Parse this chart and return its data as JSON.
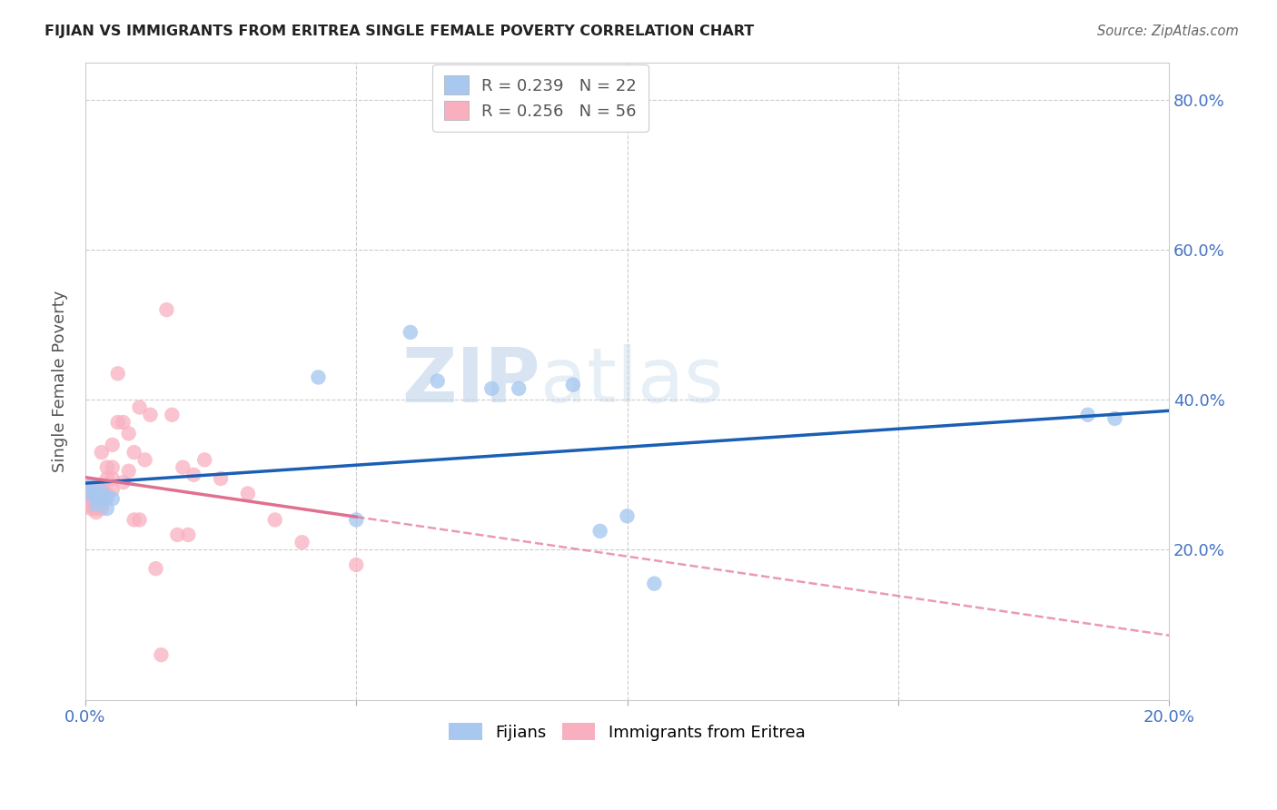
{
  "title": "FIJIAN VS IMMIGRANTS FROM ERITREA SINGLE FEMALE POVERTY CORRELATION CHART",
  "source": "Source: ZipAtlas.com",
  "ylabel": "Single Female Poverty",
  "xlim": [
    0.0,
    0.2
  ],
  "ylim": [
    0.0,
    0.85
  ],
  "watermark": "ZIPatlas",
  "fijian_color": "#a8c8f0",
  "eritrea_color": "#f8b0c0",
  "fijian_line_color": "#1a5fb4",
  "eritrea_line_color": "#e07090",
  "fijian_R": 0.239,
  "fijian_N": 22,
  "eritrea_R": 0.256,
  "eritrea_N": 56,
  "fijians_x": [
    0.001,
    0.001,
    0.002,
    0.002,
    0.002,
    0.003,
    0.003,
    0.004,
    0.004,
    0.005,
    0.043,
    0.05,
    0.06,
    0.065,
    0.075,
    0.08,
    0.09,
    0.095,
    0.1,
    0.105,
    0.185,
    0.19
  ],
  "fijians_y": [
    0.285,
    0.275,
    0.27,
    0.275,
    0.26,
    0.278,
    0.265,
    0.27,
    0.255,
    0.268,
    0.43,
    0.24,
    0.49,
    0.425,
    0.415,
    0.415,
    0.42,
    0.225,
    0.245,
    0.155,
    0.38,
    0.375
  ],
  "eritrea_x": [
    0.001,
    0.001,
    0.001,
    0.001,
    0.001,
    0.001,
    0.001,
    0.001,
    0.001,
    0.002,
    0.002,
    0.002,
    0.002,
    0.002,
    0.002,
    0.002,
    0.002,
    0.003,
    0.003,
    0.003,
    0.003,
    0.003,
    0.003,
    0.004,
    0.004,
    0.004,
    0.005,
    0.005,
    0.005,
    0.005,
    0.006,
    0.006,
    0.007,
    0.007,
    0.008,
    0.008,
    0.009,
    0.009,
    0.01,
    0.01,
    0.011,
    0.012,
    0.013,
    0.014,
    0.015,
    0.016,
    0.017,
    0.018,
    0.019,
    0.02,
    0.022,
    0.025,
    0.03,
    0.035,
    0.04,
    0.05
  ],
  "eritrea_y": [
    0.285,
    0.28,
    0.278,
    0.275,
    0.27,
    0.265,
    0.26,
    0.258,
    0.255,
    0.285,
    0.28,
    0.275,
    0.268,
    0.265,
    0.258,
    0.255,
    0.25,
    0.33,
    0.285,
    0.275,
    0.268,
    0.26,
    0.255,
    0.31,
    0.295,
    0.275,
    0.34,
    0.31,
    0.295,
    0.28,
    0.435,
    0.37,
    0.37,
    0.29,
    0.355,
    0.305,
    0.33,
    0.24,
    0.39,
    0.24,
    0.32,
    0.38,
    0.175,
    0.06,
    0.52,
    0.38,
    0.22,
    0.31,
    0.22,
    0.3,
    0.32,
    0.295,
    0.275,
    0.24,
    0.21,
    0.18
  ]
}
